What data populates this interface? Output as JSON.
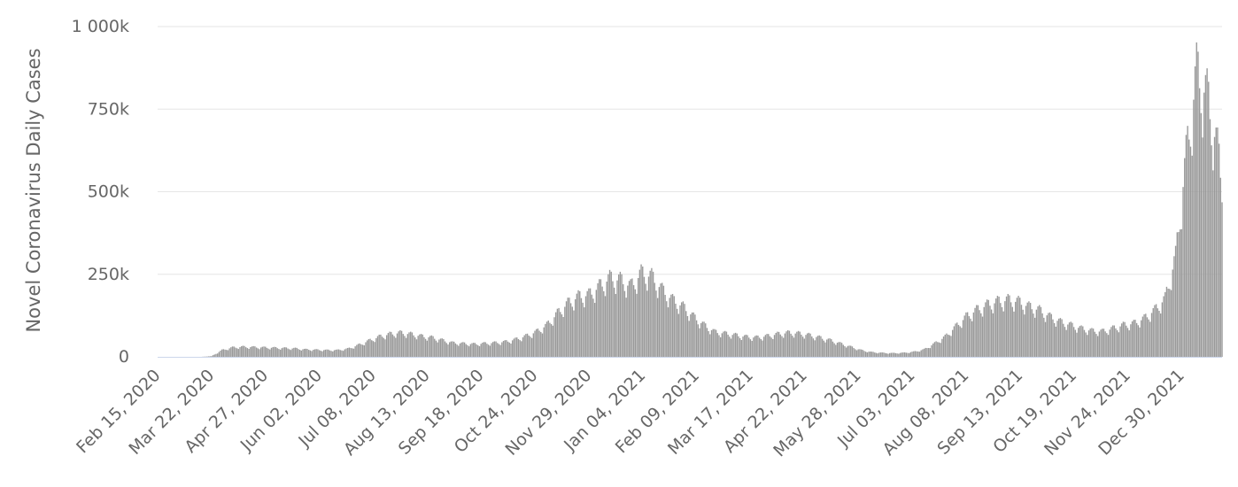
{
  "colors": {
    "bar": "#999999",
    "grid": "#e6e6e6",
    "axis_line": "#ccd6eb",
    "text": "#666666",
    "background": "#ffffff"
  },
  "chart_data": {
    "type": "bar",
    "title": "",
    "xlabel": "",
    "ylabel": "Novel Coronavirus Daily Cases",
    "ylim": [
      0,
      1000000
    ],
    "grid": true,
    "legend": "none",
    "y_ticks": [
      {
        "value": 0,
        "label": "0"
      },
      {
        "value": 250000,
        "label": "250k"
      },
      {
        "value": 500000,
        "label": "500k"
      },
      {
        "value": 750000,
        "label": "750k"
      },
      {
        "value": 1000000,
        "label": "1 000k"
      }
    ],
    "x_range": [
      "2020-02-15",
      "2022-01-26"
    ],
    "x_ticks": [
      {
        "date": "2020-02-15",
        "label": "Feb 15, 2020"
      },
      {
        "date": "2020-03-22",
        "label": "Mar 22, 2020"
      },
      {
        "date": "2020-04-27",
        "label": "Apr 27, 2020"
      },
      {
        "date": "2020-06-02",
        "label": "Jun 02, 2020"
      },
      {
        "date": "2020-07-08",
        "label": "Jul 08, 2020"
      },
      {
        "date": "2020-08-13",
        "label": "Aug 13, 2020"
      },
      {
        "date": "2020-09-18",
        "label": "Sep 18, 2020"
      },
      {
        "date": "2020-10-24",
        "label": "Oct 24, 2020"
      },
      {
        "date": "2020-11-29",
        "label": "Nov 29, 2020"
      },
      {
        "date": "2021-01-04",
        "label": "Jan 04, 2021"
      },
      {
        "date": "2021-02-09",
        "label": "Feb 09, 2021"
      },
      {
        "date": "2021-03-17",
        "label": "Mar 17, 2021"
      },
      {
        "date": "2021-04-22",
        "label": "Apr 22, 2021"
      },
      {
        "date": "2021-05-28",
        "label": "May 28, 2021"
      },
      {
        "date": "2021-07-03",
        "label": "Jul 03, 2021"
      },
      {
        "date": "2021-08-08",
        "label": "Aug 08, 2021"
      },
      {
        "date": "2021-09-13",
        "label": "Sep 13, 2021"
      },
      {
        "date": "2021-10-19",
        "label": "Oct 19, 2021"
      },
      {
        "date": "2021-11-24",
        "label": "Nov 24, 2021"
      },
      {
        "date": "2021-12-30",
        "label": "Dec 30, 2021"
      }
    ],
    "series": [
      {
        "x": [
          "2020-02-15",
          "2020-03-01",
          "2020-03-15",
          "2020-03-22",
          "2020-03-29",
          "2020-04-05",
          "2020-04-12",
          "2020-04-19",
          "2020-04-26",
          "2020-05-03",
          "2020-05-10",
          "2020-05-17",
          "2020-05-24",
          "2020-05-31",
          "2020-06-07",
          "2020-06-14",
          "2020-06-21",
          "2020-06-28",
          "2020-07-05",
          "2020-07-12",
          "2020-07-19",
          "2020-07-26",
          "2020-08-02",
          "2020-08-09",
          "2020-08-16",
          "2020-08-23",
          "2020-08-30",
          "2020-09-06",
          "2020-09-13",
          "2020-09-20",
          "2020-09-27",
          "2020-10-04",
          "2020-10-11",
          "2020-10-18",
          "2020-10-25",
          "2020-11-01",
          "2020-11-08",
          "2020-11-15",
          "2020-11-22",
          "2020-11-29",
          "2020-12-06",
          "2020-12-13",
          "2020-12-20",
          "2020-12-27",
          "2021-01-03",
          "2021-01-10",
          "2021-01-17",
          "2021-01-24",
          "2021-01-31",
          "2021-02-07",
          "2021-02-14",
          "2021-02-21",
          "2021-02-28",
          "2021-03-07",
          "2021-03-14",
          "2021-03-21",
          "2021-03-28",
          "2021-04-04",
          "2021-04-11",
          "2021-04-18",
          "2021-04-25",
          "2021-05-02",
          "2021-05-09",
          "2021-05-16",
          "2021-05-23",
          "2021-05-30",
          "2021-06-06",
          "2021-06-13",
          "2021-06-20",
          "2021-06-27",
          "2021-07-04",
          "2021-07-11",
          "2021-07-18",
          "2021-07-25",
          "2021-08-01",
          "2021-08-08",
          "2021-08-15",
          "2021-08-22",
          "2021-08-29",
          "2021-09-05",
          "2021-09-12",
          "2021-09-19",
          "2021-09-26",
          "2021-10-03",
          "2021-10-10",
          "2021-10-17",
          "2021-10-24",
          "2021-10-31",
          "2021-11-07",
          "2021-11-14",
          "2021-11-21",
          "2021-11-28",
          "2021-12-05",
          "2021-12-12",
          "2021-12-19",
          "2021-12-26",
          "2022-01-02",
          "2022-01-09",
          "2022-01-16",
          "2022-01-23",
          "2022-01-26"
        ],
        "y": [
          0,
          0,
          0,
          2000,
          20000,
          28000,
          30000,
          29000,
          28000,
          27000,
          26000,
          25000,
          22000,
          21000,
          20000,
          20000,
          24000,
          35000,
          48000,
          60000,
          68000,
          72000,
          68000,
          62000,
          58000,
          50000,
          42000,
          40000,
          38000,
          40000,
          42000,
          45000,
          52000,
          62000,
          75000,
          95000,
          130000,
          160000,
          180000,
          185000,
          210000,
          235000,
          230000,
          210000,
          250000,
          240000,
          200000,
          170000,
          150000,
          120000,
          95000,
          75000,
          70000,
          65000,
          60000,
          58000,
          62000,
          68000,
          72000,
          70000,
          65000,
          58000,
          50000,
          40000,
          30000,
          20000,
          14000,
          12000,
          11000,
          12000,
          15000,
          22000,
          40000,
          60000,
          90000,
          120000,
          140000,
          155000,
          165000,
          170000,
          165000,
          150000,
          140000,
          120000,
          105000,
          95000,
          85000,
          78000,
          76000,
          85000,
          95000,
          100000,
          115000,
          140000,
          175000,
          300000,
          600000,
          850000,
          780000,
          620000,
          520000
        ]
      }
    ]
  }
}
